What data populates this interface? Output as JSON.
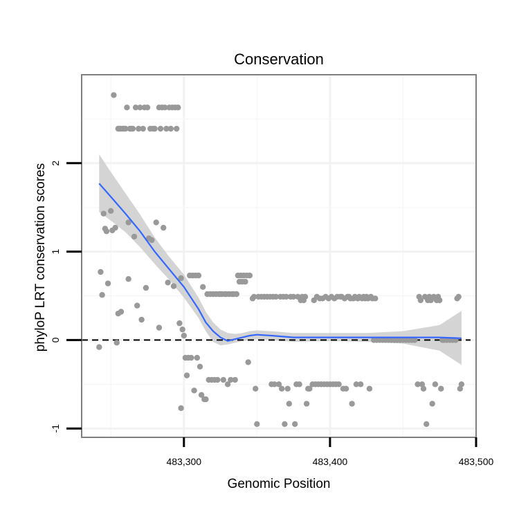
{
  "chart_data": {
    "type": "scatter",
    "title": "Conservation",
    "xlabel": "Genomic Position",
    "ylabel": "phyloP LRT conservation scores",
    "xlim": [
      483230,
      483500
    ],
    "ylim": [
      -1.1,
      3.0
    ],
    "x_ticks": [
      {
        "value": 483300,
        "label": "483,300"
      },
      {
        "value": 483400,
        "label": "483,400"
      },
      {
        "value": 483500,
        "label": "483,500"
      }
    ],
    "y_ticks": [
      {
        "value": -1,
        "label": "-1"
      },
      {
        "value": 0,
        "label": "0"
      },
      {
        "value": 1,
        "label": "1"
      },
      {
        "value": 2,
        "label": "2"
      }
    ],
    "grid": true,
    "reference_line": {
      "y": 0,
      "style": "dashed",
      "color": "#000000"
    },
    "point_color": "#999999",
    "smooth_color": "#3366ff",
    "band_color": "#cccccc",
    "series": [
      {
        "name": "phyloP scores",
        "points": [
          [
            483243,
            0.77
          ],
          [
            483244,
            0.51
          ],
          [
            483242,
            -0.08
          ],
          [
            483245,
            1.43
          ],
          [
            483246,
            1.26
          ],
          [
            483247,
            1.23
          ],
          [
            483248,
            0.64
          ],
          [
            483250,
            1.46
          ],
          [
            483251,
            1.24
          ],
          [
            483252,
            2.77
          ],
          [
            483253,
            1.27
          ],
          [
            483254,
            -0.03
          ],
          [
            483255,
            0.3
          ],
          [
            483257,
            0.32
          ],
          [
            483255,
            2.39
          ],
          [
            483256,
            2.39
          ],
          [
            483257,
            2.39
          ],
          [
            483258,
            2.39
          ],
          [
            483259,
            2.39
          ],
          [
            483260,
            2.39
          ],
          [
            483261,
            2.63
          ],
          [
            483262,
            0.69
          ],
          [
            483262,
            1.33
          ],
          [
            483263,
            2.39
          ],
          [
            483264,
            2.39
          ],
          [
            483265,
            2.39
          ],
          [
            483266,
            1.17
          ],
          [
            483267,
            2.63
          ],
          [
            483268,
            0.39
          ],
          [
            483269,
            2.39
          ],
          [
            483270,
            2.63
          ],
          [
            483271,
            0.23
          ],
          [
            483272,
            2.39
          ],
          [
            483273,
            2.63
          ],
          [
            483274,
            0.59
          ],
          [
            483275,
            2.63
          ],
          [
            483276,
            1.15
          ],
          [
            483277,
            2.39
          ],
          [
            483278,
            1.13
          ],
          [
            483279,
            2.39
          ],
          [
            483280,
            2.39
          ],
          [
            483281,
            1.33
          ],
          [
            483283,
            0.14
          ],
          [
            483283,
            2.63
          ],
          [
            483284,
            2.39
          ],
          [
            483285,
            2.63
          ],
          [
            483286,
            1.27
          ],
          [
            483287,
            2.63
          ],
          [
            483288,
            2.39
          ],
          [
            483289,
            0.65
          ],
          [
            483290,
            2.63
          ],
          [
            483291,
            2.39
          ],
          [
            483292,
            2.63
          ],
          [
            483293,
            0.61
          ],
          [
            483294,
            2.63
          ],
          [
            483295,
            2.39
          ],
          [
            483296,
            2.63
          ],
          [
            483297,
            0.19
          ],
          [
            483298,
            0.7
          ],
          [
            483298,
            -0.77
          ],
          [
            483299,
            0.12
          ],
          [
            483300,
            0.05
          ],
          [
            483301,
            -0.2
          ],
          [
            483302,
            -0.4
          ],
          [
            483303,
            -0.2
          ],
          [
            483304,
            0.73
          ],
          [
            483305,
            -0.2
          ],
          [
            483306,
            0.73
          ],
          [
            483307,
            -0.57
          ],
          [
            483308,
            0.73
          ],
          [
            483309,
            -0.2
          ],
          [
            483310,
            0.73
          ],
          [
            483311,
            -0.3
          ],
          [
            483312,
            -0.62
          ],
          [
            483313,
            0.6
          ],
          [
            483314,
            -0.67
          ],
          [
            483315,
            -0.67
          ],
          [
            483316,
            0.52
          ],
          [
            483317,
            -0.45
          ],
          [
            483318,
            0.52
          ],
          [
            483319,
            -0.45
          ],
          [
            483320,
            0.52
          ],
          [
            483321,
            -0.45
          ],
          [
            483322,
            0.52
          ],
          [
            483323,
            -0.45
          ],
          [
            483324,
            0.52
          ],
          [
            483325,
            0.52
          ],
          [
            483326,
            0.52
          ],
          [
            483327,
            -0.45
          ],
          [
            483328,
            0.52
          ],
          [
            483329,
            0.52
          ],
          [
            483330,
            -0.5
          ],
          [
            483331,
            0.52
          ],
          [
            483332,
            -0.45
          ],
          [
            483333,
            0.52
          ],
          [
            483334,
            0.52
          ],
          [
            483335,
            -0.45
          ],
          [
            483336,
            0.52
          ],
          [
            483337,
            0.73
          ],
          [
            483338,
            0.66
          ],
          [
            483339,
            0.73
          ],
          [
            483340,
            0.66
          ],
          [
            483341,
            0.73
          ],
          [
            483342,
            0.66
          ],
          [
            483343,
            0.73
          ],
          [
            483344,
            -0.25
          ],
          [
            483345,
            0.73
          ],
          [
            483347,
            0.47
          ],
          [
            483348,
            0.49
          ],
          [
            483349,
            -0.55
          ],
          [
            483350,
            -0.95
          ],
          [
            483351,
            0.49
          ],
          [
            483353,
            0.49
          ],
          [
            483355,
            0.49
          ],
          [
            483357,
            0.49
          ],
          [
            483359,
            0.49
          ],
          [
            483360,
            -0.5
          ],
          [
            483361,
            0.49
          ],
          [
            483362,
            -0.5
          ],
          [
            483363,
            0.49
          ],
          [
            483365,
            -0.5
          ],
          [
            483366,
            0.49
          ],
          [
            483367,
            -0.55
          ],
          [
            483368,
            0.49
          ],
          [
            483369,
            -0.95
          ],
          [
            483370,
            0.49
          ],
          [
            483371,
            -0.55
          ],
          [
            483372,
            -0.72
          ],
          [
            483373,
            0.49
          ],
          [
            483375,
            0.49
          ],
          [
            483376,
            -0.95
          ],
          [
            483377,
            -0.5
          ],
          [
            483378,
            0.49
          ],
          [
            483379,
            -0.5
          ],
          [
            483380,
            0.45
          ],
          [
            483381,
            0.49
          ],
          [
            483382,
            0.45
          ],
          [
            483383,
            0.49
          ],
          [
            483384,
            -0.72
          ],
          [
            483385,
            -0.55
          ],
          [
            483386,
            -0.55
          ],
          [
            483388,
            -0.5
          ],
          [
            483389,
            0.45
          ],
          [
            483390,
            -0.5
          ],
          [
            483391,
            0.49
          ],
          [
            483392,
            -0.5
          ],
          [
            483393,
            0.47
          ],
          [
            483394,
            -0.5
          ],
          [
            483395,
            0.47
          ],
          [
            483396,
            -0.5
          ],
          [
            483397,
            0.49
          ],
          [
            483398,
            -0.5
          ],
          [
            483399,
            0.47
          ],
          [
            483400,
            -0.5
          ],
          [
            483401,
            0.49
          ],
          [
            483402,
            -0.5
          ],
          [
            483403,
            0.47
          ],
          [
            483404,
            -0.5
          ],
          [
            483405,
            0.49
          ],
          [
            483406,
            -0.5
          ],
          [
            483407,
            0.49
          ],
          [
            483408,
            0.49
          ],
          [
            483409,
            -0.55
          ],
          [
            483410,
            0.47
          ],
          [
            483411,
            -0.55
          ],
          [
            483412,
            0.49
          ],
          [
            483413,
            0.49
          ],
          [
            483414,
            0.47
          ],
          [
            483415,
            -0.72
          ],
          [
            483416,
            0.47
          ],
          [
            483417,
            0.49
          ],
          [
            483418,
            -0.5
          ],
          [
            483419,
            0.47
          ],
          [
            483420,
            0.49
          ],
          [
            483421,
            -0.5
          ],
          [
            483422,
            0.47
          ],
          [
            483423,
            0.49
          ],
          [
            483424,
            0.47
          ],
          [
            483425,
            0.49
          ],
          [
            483426,
            0.47
          ],
          [
            483427,
            -0.55
          ],
          [
            483428,
            0.49
          ],
          [
            483429,
            0.47
          ],
          [
            483430,
            0.0
          ],
          [
            483431,
            0.47
          ],
          [
            483432,
            0.0
          ],
          [
            483434,
            0.0
          ],
          [
            483436,
            0.0
          ],
          [
            483438,
            0.0
          ],
          [
            483440,
            0.0
          ],
          [
            483442,
            0.0
          ],
          [
            483444,
            0.0
          ],
          [
            483446,
            0.0
          ],
          [
            483448,
            0.0
          ],
          [
            483450,
            0.0
          ],
          [
            483452,
            0.0
          ],
          [
            483454,
            0.0
          ],
          [
            483456,
            0.0
          ],
          [
            483458,
            0.0
          ],
          [
            483460,
            -0.5
          ],
          [
            483461,
            0.49
          ],
          [
            483462,
            0.45
          ],
          [
            483463,
            -0.5
          ],
          [
            483464,
            -0.55
          ],
          [
            483465,
            0.49
          ],
          [
            483466,
            -0.95
          ],
          [
            483467,
            0.45
          ],
          [
            483468,
            0.49
          ],
          [
            483469,
            0.45
          ],
          [
            483470,
            -0.72
          ],
          [
            483471,
            0.49
          ],
          [
            483472,
            -0.5
          ],
          [
            483473,
            0.45
          ],
          [
            483474,
            0.49
          ],
          [
            483475,
            0.45
          ],
          [
            483476,
            -0.55
          ],
          [
            483477,
            0.0
          ],
          [
            483478,
            0.0
          ],
          [
            483480,
            0.0
          ],
          [
            483482,
            0.0
          ],
          [
            483484,
            0.0
          ],
          [
            483486,
            0.0
          ],
          [
            483487,
            0.47
          ],
          [
            483488,
            0.49
          ],
          [
            483489,
            -0.55
          ],
          [
            483490,
            -0.5
          ]
        ]
      },
      {
        "name": "loess fit",
        "x": [
          483242,
          483250,
          483260,
          483270,
          483280,
          483290,
          483300,
          483310,
          483315,
          483320,
          483325,
          483330,
          483335,
          483340,
          483345,
          483350,
          483360,
          483375,
          483400,
          483425,
          483450,
          483475,
          483490
        ],
        "y": [
          1.77,
          1.62,
          1.43,
          1.23,
          1.0,
          0.8,
          0.6,
          0.35,
          0.2,
          0.1,
          0.03,
          -0.01,
          0.01,
          0.03,
          0.05,
          0.06,
          0.05,
          0.03,
          0.03,
          0.03,
          0.03,
          0.03,
          0.02
        ],
        "lo": [
          1.45,
          1.35,
          1.22,
          1.05,
          0.86,
          0.68,
          0.48,
          0.25,
          0.1,
          -0.02,
          -0.06,
          -0.05,
          -0.03,
          -0.01,
          0.0,
          0.01,
          0.0,
          -0.02,
          -0.01,
          -0.02,
          -0.04,
          -0.12,
          -0.28
        ],
        "hi": [
          2.1,
          1.9,
          1.66,
          1.42,
          1.16,
          0.94,
          0.74,
          0.48,
          0.32,
          0.2,
          0.12,
          0.08,
          0.07,
          0.08,
          0.1,
          0.11,
          0.1,
          0.08,
          0.08,
          0.08,
          0.1,
          0.17,
          0.33
        ]
      }
    ]
  }
}
